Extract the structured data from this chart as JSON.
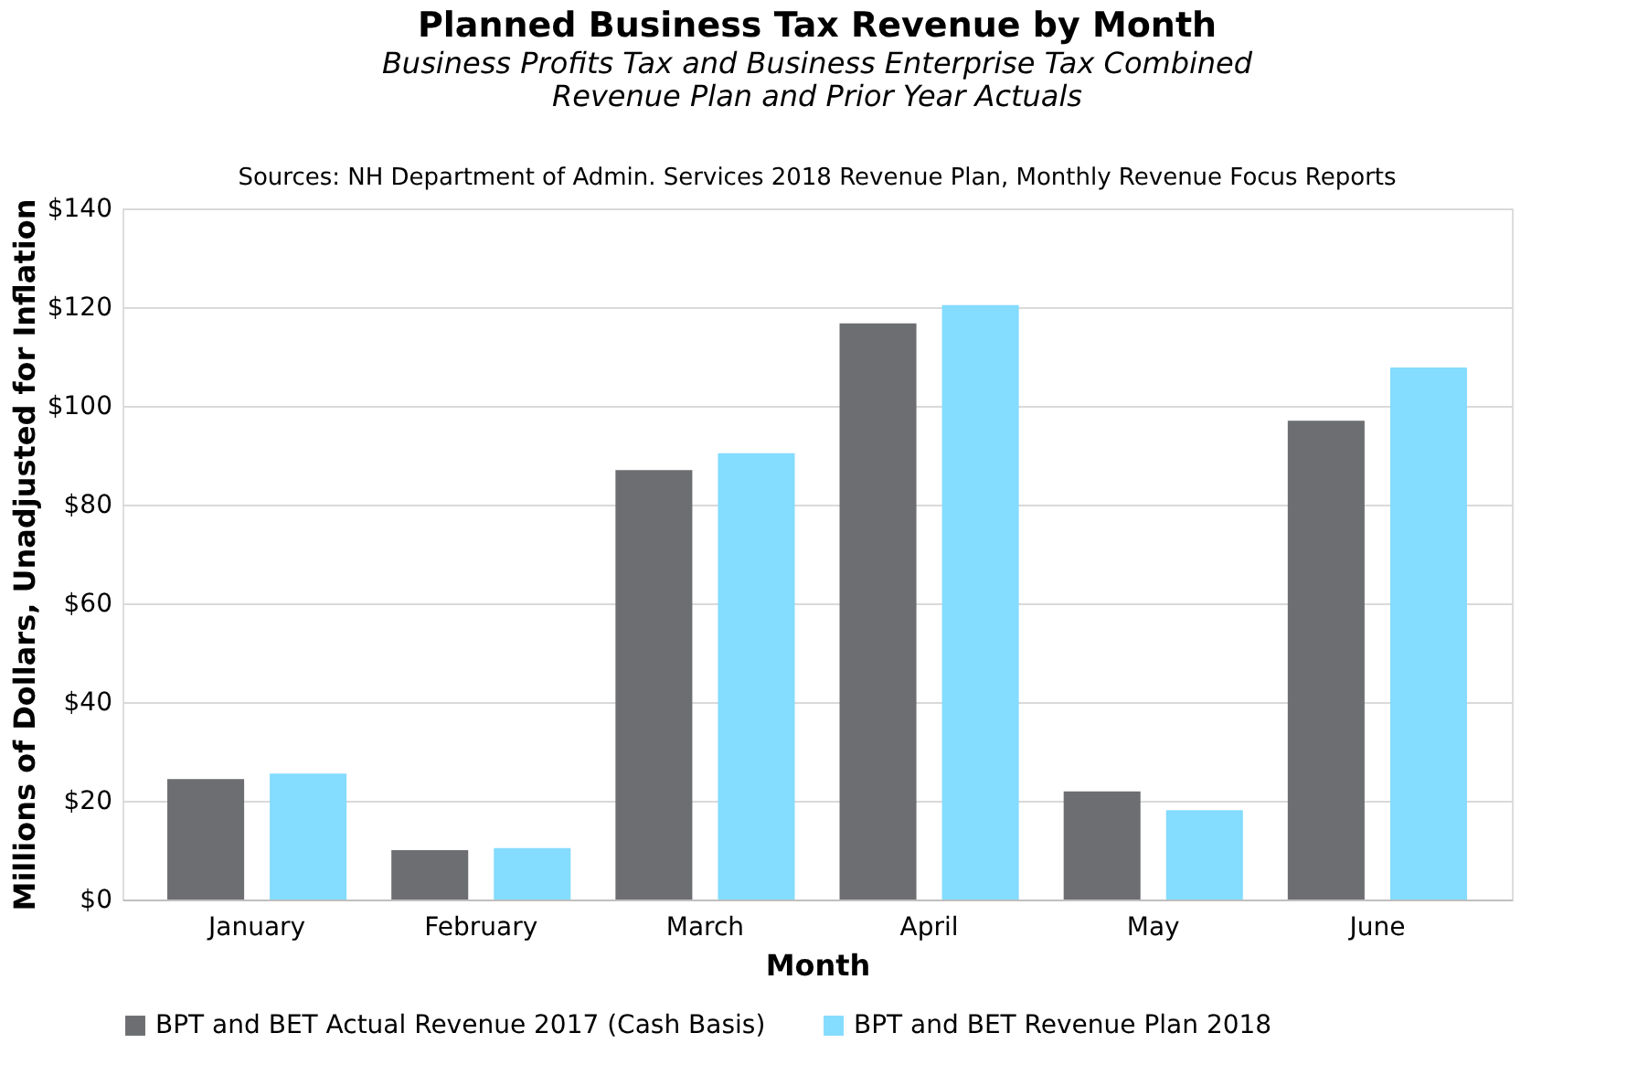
{
  "chart_data": {
    "type": "bar",
    "title": "Planned Business Tax Revenue by Month",
    "subtitle": [
      "Business Profits Tax and Business Enterprise Tax Combined",
      "Revenue Plan and Prior Year Actuals"
    ],
    "annotations": [
      "Sources: NH Department of Admin. Services 2018 Revenue Plan, Monthly Revenue Focus Reports"
    ],
    "xlabel": "Month",
    "ylabel": "Millions of Dollars, Unadjusted for Inflation",
    "categories": [
      "January",
      "February",
      "March",
      "April",
      "May",
      "June"
    ],
    "series": [
      {
        "name": "BPT and BET Actual Revenue 2017 (Cash Basis)",
        "color": "#6d6e71",
        "values": [
          24.4,
          10,
          87,
          116.7,
          21.9,
          97
        ]
      },
      {
        "name": "BPT and BET Revenue Plan 2018",
        "color": "#84dcff",
        "values": [
          25.5,
          10.4,
          90.4,
          120.4,
          18.1,
          107.8
        ]
      }
    ],
    "ylim": [
      0,
      140
    ],
    "yticks": [
      {
        "value": 0,
        "label": "$0"
      },
      {
        "value": 20,
        "label": "$20"
      },
      {
        "value": 40,
        "label": "$40"
      },
      {
        "value": 60,
        "label": "$60"
      },
      {
        "value": 80,
        "label": "$80"
      },
      {
        "value": 100,
        "label": "$100"
      },
      {
        "value": 120,
        "label": "$120"
      },
      {
        "value": 140,
        "label": "$140"
      }
    ],
    "grid": "y",
    "legend": "bottom"
  }
}
